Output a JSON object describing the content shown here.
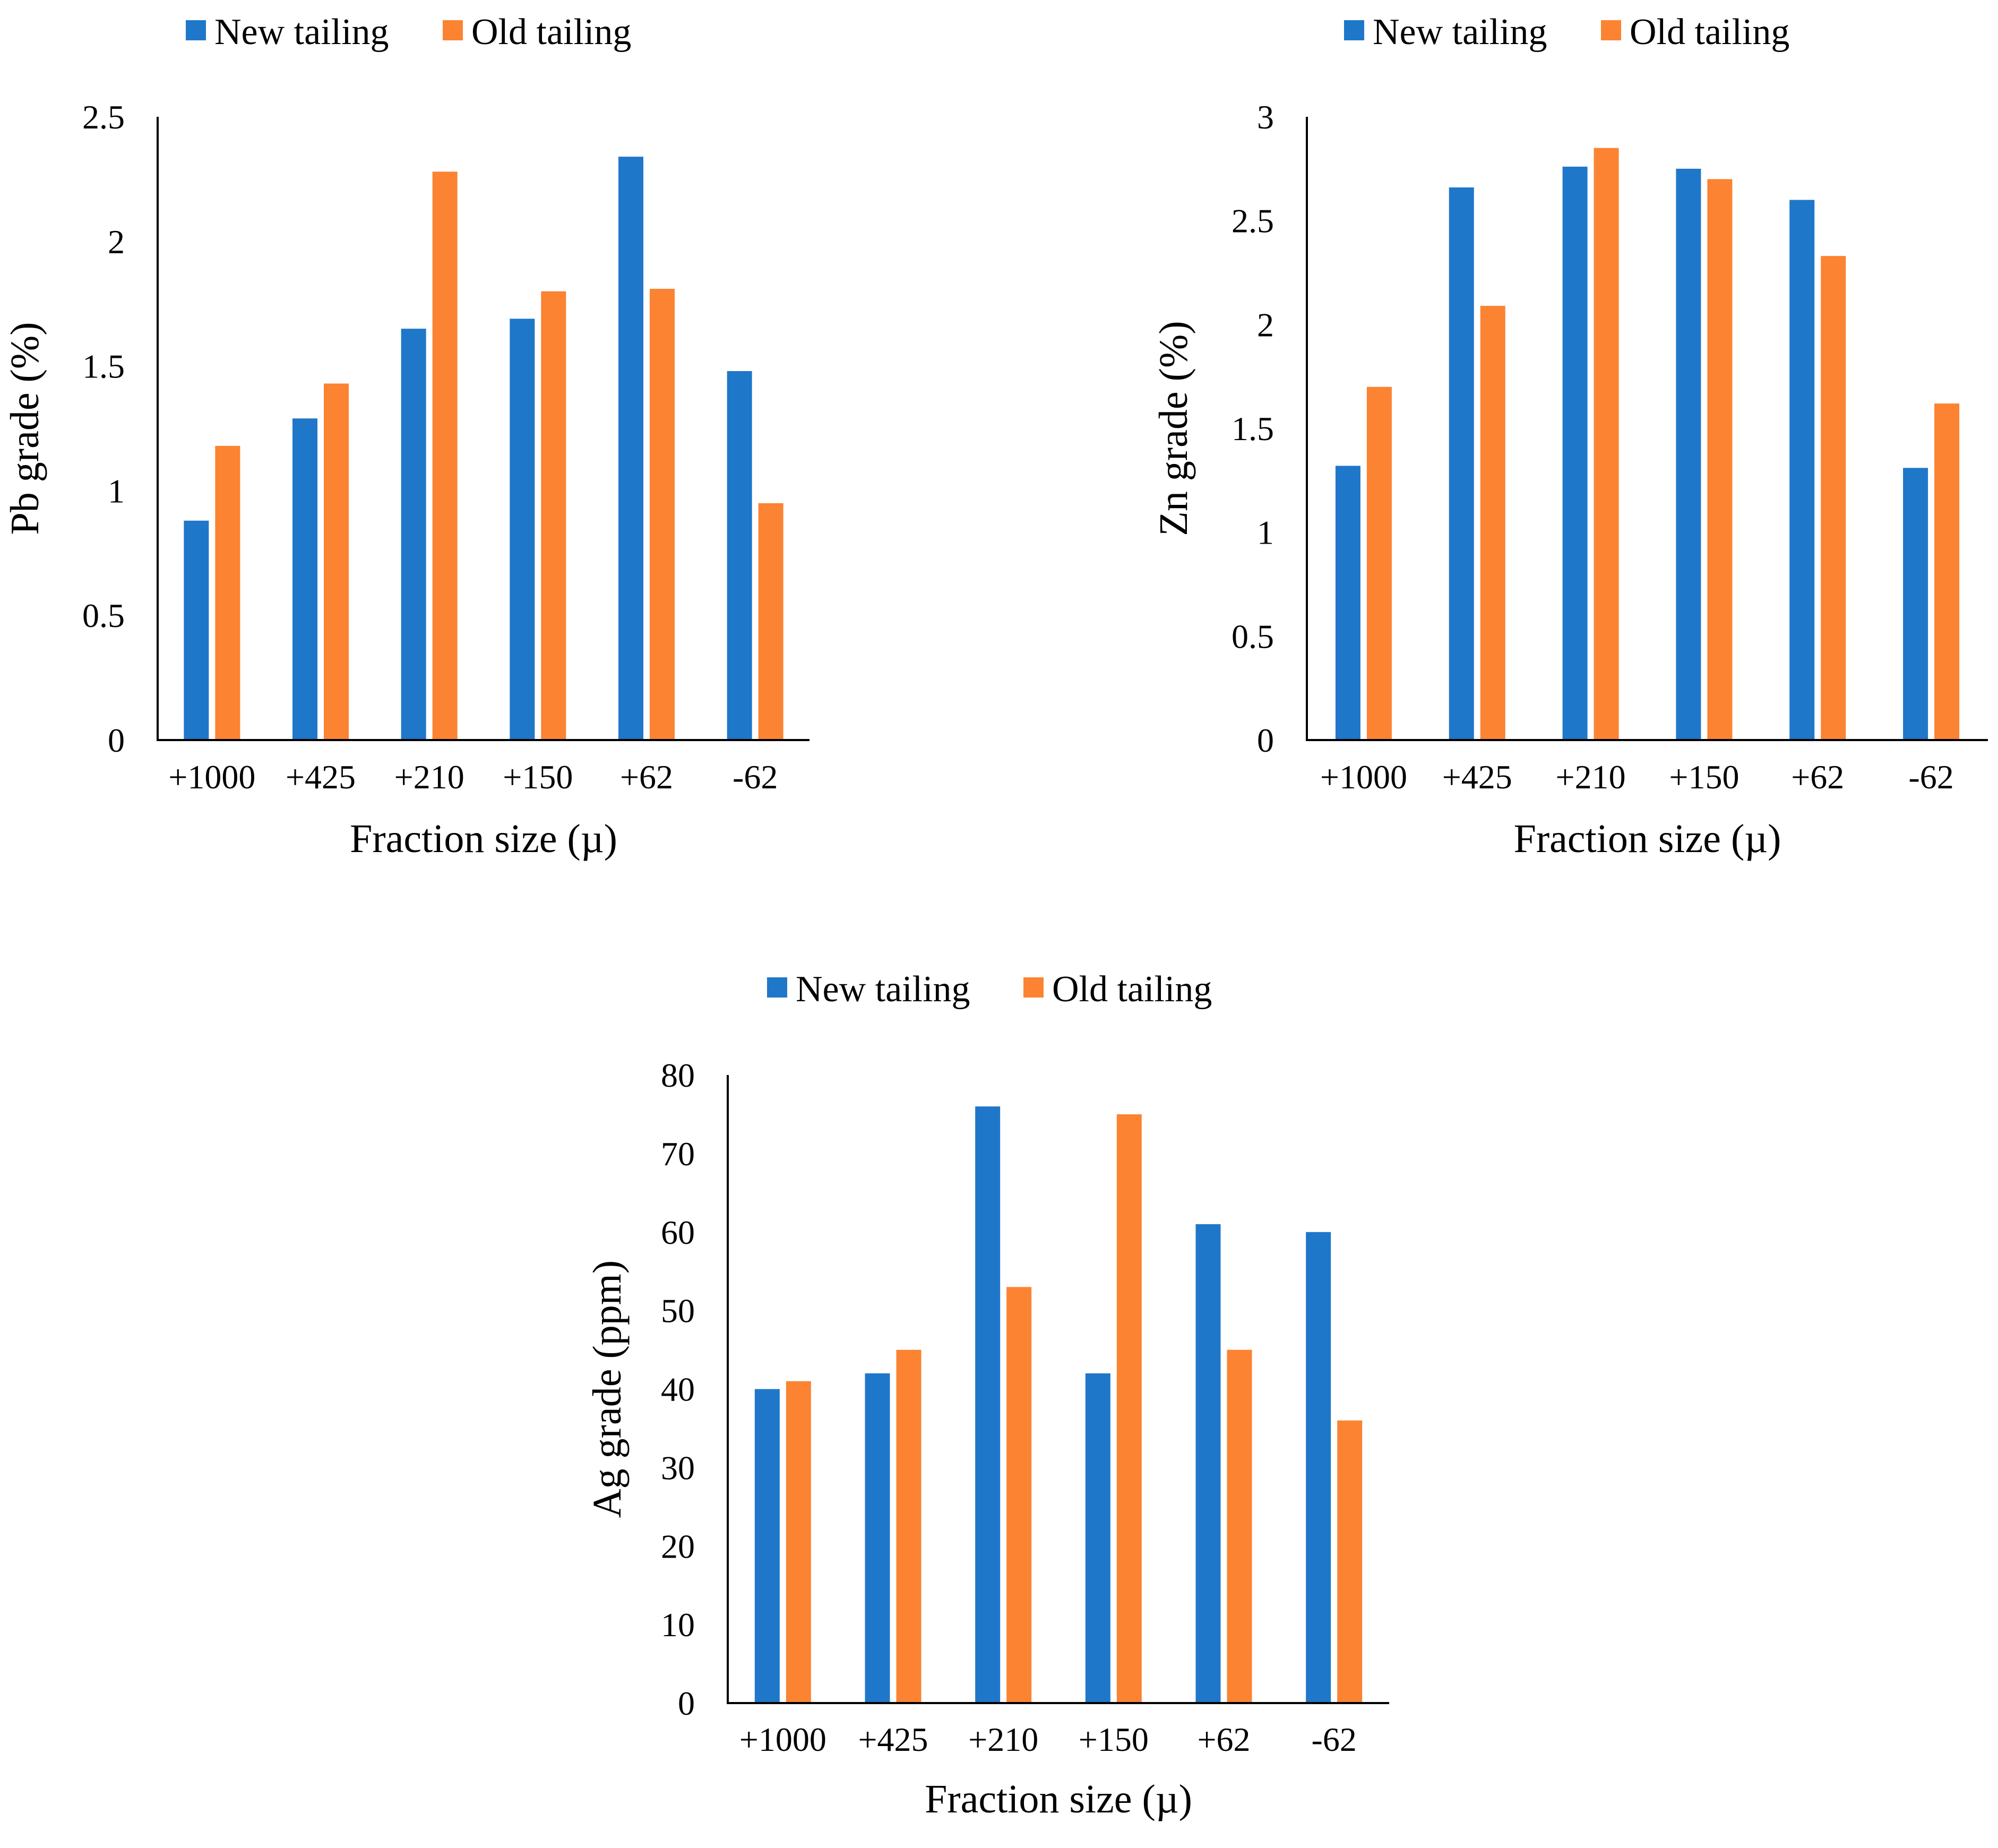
{
  "colors": {
    "new_tailing": "#1f77c9",
    "old_tailing": "#fb8332",
    "axis": "#000000"
  },
  "chart_data": [
    {
      "id": "pb",
      "type": "bar",
      "categories": [
        "+1000",
        "+425",
        "+210",
        "+150",
        "+62",
        "-62"
      ],
      "series": [
        {
          "name": "New tailing",
          "values": [
            0.88,
            1.29,
            1.65,
            1.69,
            2.34,
            1.48
          ]
        },
        {
          "name": "Old tailing",
          "values": [
            1.18,
            1.43,
            2.28,
            1.8,
            1.81,
            0.95
          ]
        }
      ],
      "title": "",
      "xlabel": "Fraction size (µ)",
      "ylabel": "Pb grade (%)",
      "ylim": [
        0,
        2.5
      ],
      "yticks": [
        "0",
        "0.5",
        "1",
        "1.5",
        "2",
        "2.5"
      ],
      "grid": false,
      "legend": "top"
    },
    {
      "id": "zn",
      "type": "bar",
      "categories": [
        "+1000",
        "+425",
        "+210",
        "+150",
        "+62",
        "-62"
      ],
      "series": [
        {
          "name": "New tailing",
          "values": [
            1.32,
            2.66,
            2.76,
            2.75,
            2.6,
            1.31
          ]
        },
        {
          "name": "Old tailing",
          "values": [
            1.7,
            2.09,
            2.85,
            2.7,
            2.33,
            1.62
          ]
        }
      ],
      "title": "",
      "xlabel": "Fraction size (µ)",
      "ylabel": "Zn grade (%)",
      "ylim": [
        0,
        3
      ],
      "yticks": [
        "0",
        "0.5",
        "1",
        "1.5",
        "2",
        "2.5",
        "3"
      ],
      "grid": false,
      "legend": "top"
    },
    {
      "id": "ag",
      "type": "bar",
      "categories": [
        "+1000",
        "+425",
        "+210",
        "+150",
        "+62",
        "-62"
      ],
      "series": [
        {
          "name": "New tailing",
          "values": [
            40,
            42,
            76,
            42,
            61,
            60
          ]
        },
        {
          "name": "Old tailing",
          "values": [
            41,
            45,
            53,
            75,
            45,
            36
          ]
        }
      ],
      "title": "",
      "xlabel": "Fraction size (µ)",
      "ylabel": "Ag grade (ppm)",
      "ylim": [
        0,
        80
      ],
      "yticks": [
        "0",
        "10",
        "20",
        "30",
        "40",
        "50",
        "60",
        "70",
        "80"
      ],
      "grid": false,
      "legend": "top"
    }
  ]
}
